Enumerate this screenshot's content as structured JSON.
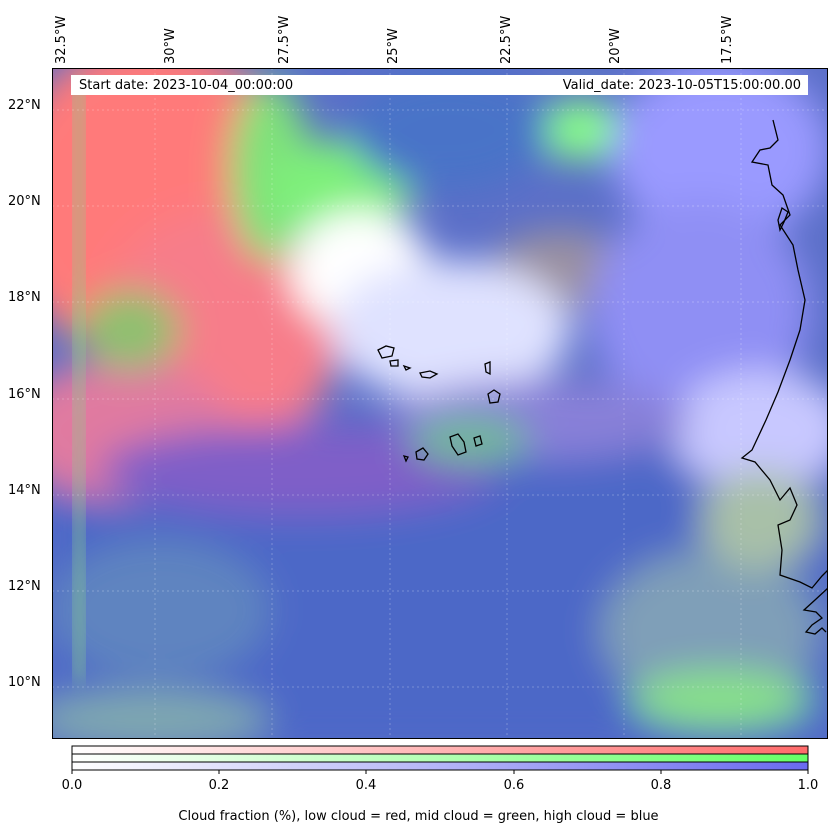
{
  "map": {
    "start_date": "Start date: 2023-10-04_00:00:00",
    "valid_date": "Valid_date: 2023-10-05T15:00:00.00",
    "lon_labels": [
      "32.5°W",
      "30°W",
      "27.5°W",
      "25°W",
      "22.5°W",
      "20°W",
      "17.5°W"
    ],
    "lat_labels": [
      "22°N",
      "20°N",
      "18°N",
      "16°N",
      "14°N",
      "12°N",
      "10°N"
    ],
    "colors": {
      "low_cloud": "#ff6b6b",
      "mid_cloud": "#66ff66",
      "high_cloud": "#4a5ad8"
    }
  },
  "colorbar": {
    "tick_labels": [
      "0.0",
      "0.2",
      "0.4",
      "0.6",
      "0.8",
      "1.0"
    ],
    "title": "Cloud fraction (%), low cloud = red, mid cloud = green, high cloud = blue"
  }
}
